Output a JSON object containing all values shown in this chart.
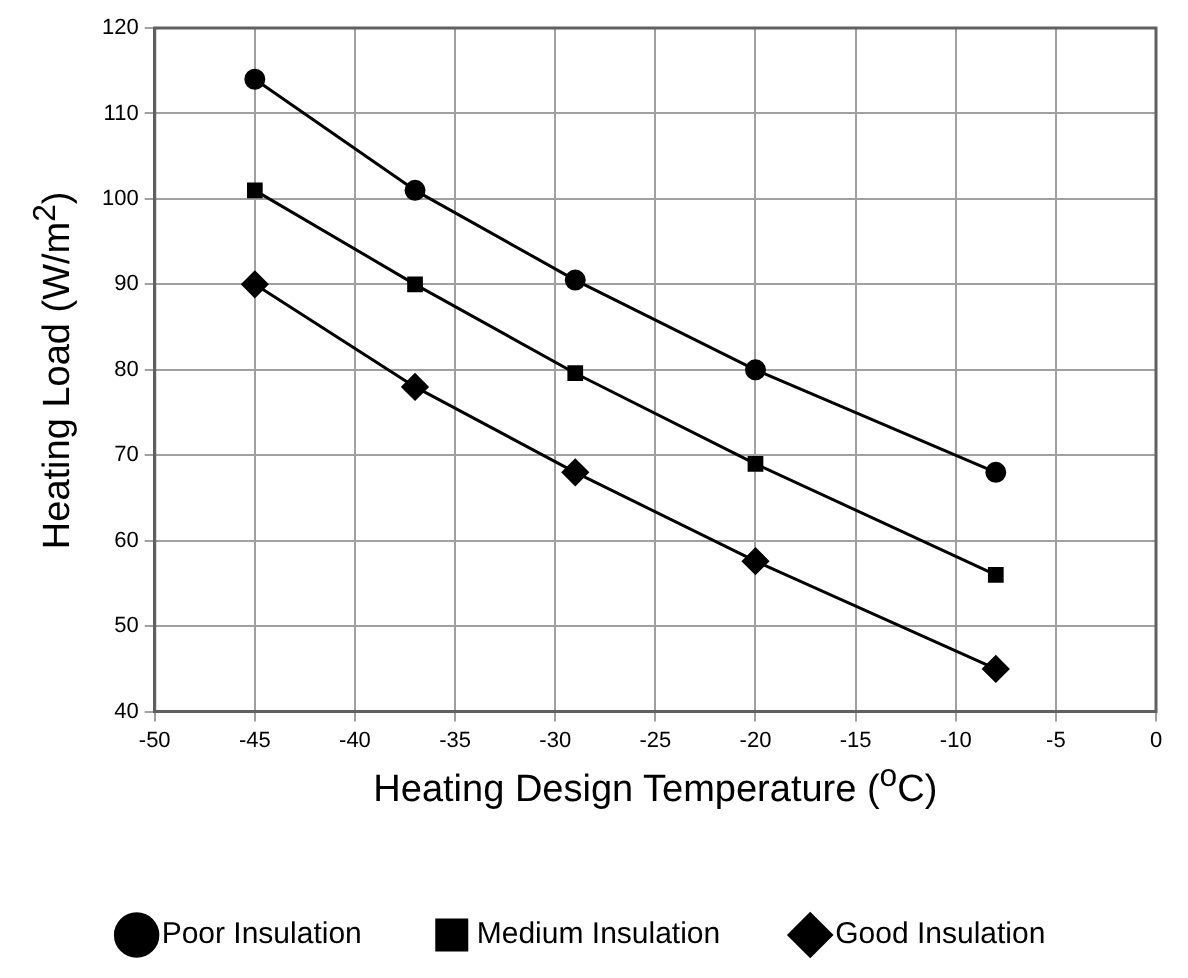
{
  "chart_data": {
    "type": "line",
    "xlabel": "Heating Design Temperature ($^{o}$C)",
    "ylabel": "Heating Load (W/m$^{2}$)",
    "x": [
      -45,
      -37,
      -29,
      -20,
      -8
    ],
    "series": [
      {
        "name": "Poor Insulation",
        "color": "#000000",
        "marker": "circle",
        "values": [
          114,
          101,
          90.5,
          80,
          68
        ]
      },
      {
        "name": "Medium Insulation",
        "color": "#000000",
        "marker": "square",
        "values": [
          101,
          90,
          79.6,
          69,
          56
        ]
      },
      {
        "name": "Good Insulation",
        "color": "#000000",
        "marker": "diamond",
        "values": [
          90,
          78,
          68,
          57.6,
          45
        ]
      }
    ],
    "xlim": [
      -50,
      0
    ],
    "xticks": [
      -50,
      -45,
      -40,
      -35,
      -30,
      -25,
      -20,
      -15,
      -10,
      -5,
      0
    ],
    "ylim": [
      40,
      120
    ],
    "yticks": [
      40,
      50,
      60,
      70,
      80,
      90,
      100,
      110,
      120
    ],
    "grid": true,
    "legend": "bottom",
    "line_style": "solid"
  }
}
